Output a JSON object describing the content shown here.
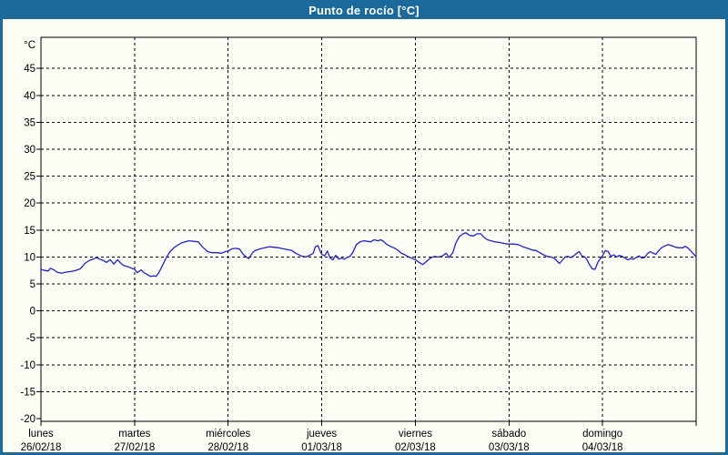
{
  "window": {
    "title": "Punto de rocío [°C]"
  },
  "colors": {
    "titlebar": "#1C699C",
    "border": "#1C699C",
    "background": "#FBFCF3",
    "line": "#2222CC",
    "grid": "#000000",
    "text": "#000000"
  },
  "chart_data": {
    "type": "line",
    "title": "Punto de rocío [°C]",
    "ylabel": "°C",
    "xlabel": "",
    "ylim": [
      -20,
      45
    ],
    "yticks": [
      -20,
      -15,
      -10,
      -5,
      0,
      5,
      10,
      15,
      20,
      25,
      30,
      35,
      40,
      45
    ],
    "grid": "dashed-both-axes",
    "legend": "none",
    "x_axis_days": [
      {
        "name": "lunes",
        "date": "26/02/18"
      },
      {
        "name": "martes",
        "date": "27/02/18"
      },
      {
        "name": "miércoles",
        "date": "28/02/18"
      },
      {
        "name": "jueves",
        "date": "01/03/18"
      },
      {
        "name": "viernes",
        "date": "02/03/18"
      },
      {
        "name": "sábado",
        "date": "03/03/18"
      },
      {
        "name": "domingo",
        "date": "04/03/18"
      }
    ],
    "series": [
      {
        "name": "Punto de rocío",
        "color": "#2222CC",
        "x_unit": "days since 26/02/18 00:00",
        "y_unit": "°C",
        "points": [
          [
            0.0,
            7.7
          ],
          [
            0.04,
            7.5
          ],
          [
            0.08,
            7.4
          ],
          [
            0.1,
            7.9
          ],
          [
            0.14,
            7.6
          ],
          [
            0.17,
            7.2
          ],
          [
            0.22,
            7.0
          ],
          [
            0.27,
            7.2
          ],
          [
            0.32,
            7.3
          ],
          [
            0.37,
            7.5
          ],
          [
            0.42,
            7.8
          ],
          [
            0.47,
            8.8
          ],
          [
            0.52,
            9.4
          ],
          [
            0.56,
            9.6
          ],
          [
            0.59,
            9.9
          ],
          [
            0.63,
            9.6
          ],
          [
            0.66,
            9.4
          ],
          [
            0.7,
            9.0
          ],
          [
            0.74,
            9.5
          ],
          [
            0.78,
            8.7
          ],
          [
            0.82,
            9.5
          ],
          [
            0.86,
            8.7
          ],
          [
            0.89,
            8.4
          ],
          [
            0.93,
            8.2
          ],
          [
            0.97,
            7.9
          ],
          [
            1.0,
            7.7
          ],
          [
            1.03,
            7.1
          ],
          [
            1.07,
            7.6
          ],
          [
            1.1,
            7.1
          ],
          [
            1.13,
            6.8
          ],
          [
            1.17,
            6.4
          ],
          [
            1.21,
            6.5
          ],
          [
            1.23,
            6.4
          ],
          [
            1.26,
            7.1
          ],
          [
            1.3,
            8.5
          ],
          [
            1.34,
            9.9
          ],
          [
            1.38,
            11.0
          ],
          [
            1.42,
            11.7
          ],
          [
            1.46,
            12.2
          ],
          [
            1.5,
            12.6
          ],
          [
            1.54,
            12.8
          ],
          [
            1.58,
            13.0
          ],
          [
            1.63,
            12.9
          ],
          [
            1.68,
            12.8
          ],
          [
            1.73,
            11.8
          ],
          [
            1.78,
            11.0
          ],
          [
            1.83,
            10.8
          ],
          [
            1.88,
            10.8
          ],
          [
            1.93,
            10.7
          ],
          [
            1.97,
            11.0
          ],
          [
            2.0,
            11.1
          ],
          [
            2.04,
            11.5
          ],
          [
            2.08,
            11.6
          ],
          [
            2.12,
            11.5
          ],
          [
            2.16,
            10.5
          ],
          [
            2.2,
            9.9
          ],
          [
            2.22,
            9.7
          ],
          [
            2.26,
            10.8
          ],
          [
            2.29,
            11.2
          ],
          [
            2.34,
            11.5
          ],
          [
            2.39,
            11.7
          ],
          [
            2.44,
            11.9
          ],
          [
            2.49,
            11.8
          ],
          [
            2.54,
            11.7
          ],
          [
            2.59,
            11.5
          ],
          [
            2.63,
            11.4
          ],
          [
            2.68,
            11.2
          ],
          [
            2.73,
            10.6
          ],
          [
            2.78,
            10.2
          ],
          [
            2.83,
            10.0
          ],
          [
            2.87,
            10.3
          ],
          [
            2.91,
            10.7
          ],
          [
            2.93,
            11.9
          ],
          [
            2.96,
            12.1
          ],
          [
            2.99,
            10.8
          ],
          [
            3.0,
            10.5
          ],
          [
            3.03,
            10.2
          ],
          [
            3.06,
            11.1
          ],
          [
            3.09,
            9.8
          ],
          [
            3.12,
            9.5
          ],
          [
            3.15,
            10.3
          ],
          [
            3.18,
            9.6
          ],
          [
            3.21,
            9.8
          ],
          [
            3.24,
            9.6
          ],
          [
            3.27,
            9.9
          ],
          [
            3.3,
            10.1
          ],
          [
            3.33,
            10.8
          ],
          [
            3.37,
            12.3
          ],
          [
            3.41,
            12.8
          ],
          [
            3.45,
            13.0
          ],
          [
            3.49,
            12.9
          ],
          [
            3.52,
            12.8
          ],
          [
            3.56,
            13.2
          ],
          [
            3.6,
            13.0
          ],
          [
            3.63,
            13.2
          ],
          [
            3.66,
            12.9
          ],
          [
            3.69,
            12.4
          ],
          [
            3.73,
            12.0
          ],
          [
            3.77,
            11.7
          ],
          [
            3.81,
            11.3
          ],
          [
            3.85,
            10.7
          ],
          [
            3.89,
            10.4
          ],
          [
            3.93,
            10.0
          ],
          [
            3.97,
            9.7
          ],
          [
            4.0,
            9.5
          ],
          [
            4.04,
            9.0
          ],
          [
            4.08,
            8.6
          ],
          [
            4.12,
            9.2
          ],
          [
            4.16,
            9.8
          ],
          [
            4.2,
            10.1
          ],
          [
            4.24,
            10.0
          ],
          [
            4.28,
            10.1
          ],
          [
            4.33,
            10.7
          ],
          [
            4.36,
            9.9
          ],
          [
            4.4,
            10.8
          ],
          [
            4.43,
            12.5
          ],
          [
            4.47,
            13.8
          ],
          [
            4.51,
            14.3
          ],
          [
            4.54,
            14.5
          ],
          [
            4.58,
            14.0
          ],
          [
            4.62,
            13.9
          ],
          [
            4.66,
            14.3
          ],
          [
            4.7,
            14.3
          ],
          [
            4.73,
            13.7
          ],
          [
            4.77,
            13.2
          ],
          [
            4.81,
            13.0
          ],
          [
            4.85,
            12.8
          ],
          [
            4.9,
            12.7
          ],
          [
            4.95,
            12.5
          ],
          [
            5.0,
            12.4
          ],
          [
            5.05,
            12.4
          ],
          [
            5.1,
            12.3
          ],
          [
            5.15,
            11.9
          ],
          [
            5.2,
            11.6
          ],
          [
            5.25,
            11.3
          ],
          [
            5.29,
            11.2
          ],
          [
            5.33,
            10.8
          ],
          [
            5.37,
            10.4
          ],
          [
            5.41,
            10.1
          ],
          [
            5.45,
            10.0
          ],
          [
            5.48,
            9.8
          ],
          [
            5.51,
            9.3
          ],
          [
            5.54,
            8.8
          ],
          [
            5.57,
            9.4
          ],
          [
            5.6,
            10.0
          ],
          [
            5.63,
            10.1
          ],
          [
            5.66,
            9.9
          ],
          [
            5.69,
            10.2
          ],
          [
            5.72,
            10.6
          ],
          [
            5.75,
            11.0
          ],
          [
            5.78,
            10.2
          ],
          [
            5.81,
            10.0
          ],
          [
            5.83,
            9.6
          ],
          [
            5.86,
            8.6
          ],
          [
            5.89,
            7.8
          ],
          [
            5.92,
            7.7
          ],
          [
            5.95,
            9.0
          ],
          [
            5.98,
            9.8
          ],
          [
            6.0,
            10.2
          ],
          [
            6.03,
            11.2
          ],
          [
            6.06,
            11.0
          ],
          [
            6.09,
            10.1
          ],
          [
            6.12,
            10.4
          ],
          [
            6.15,
            10.0
          ],
          [
            6.18,
            10.3
          ],
          [
            6.21,
            10.1
          ],
          [
            6.24,
            9.8
          ],
          [
            6.27,
            9.5
          ],
          [
            6.3,
            9.7
          ],
          [
            6.33,
            9.6
          ],
          [
            6.36,
            9.9
          ],
          [
            6.39,
            10.2
          ],
          [
            6.42,
            9.8
          ],
          [
            6.45,
            9.9
          ],
          [
            6.48,
            10.6
          ],
          [
            6.51,
            11.0
          ],
          [
            6.54,
            10.7
          ],
          [
            6.57,
            10.5
          ],
          [
            6.6,
            11.2
          ],
          [
            6.63,
            11.7
          ],
          [
            6.66,
            12.0
          ],
          [
            6.7,
            12.3
          ],
          [
            6.74,
            12.1
          ],
          [
            6.78,
            11.8
          ],
          [
            6.82,
            11.7
          ],
          [
            6.86,
            11.7
          ],
          [
            6.88,
            12.0
          ],
          [
            6.91,
            11.7
          ],
          [
            6.94,
            11.2
          ],
          [
            6.97,
            10.6
          ],
          [
            7.0,
            10.0
          ]
        ]
      }
    ]
  }
}
